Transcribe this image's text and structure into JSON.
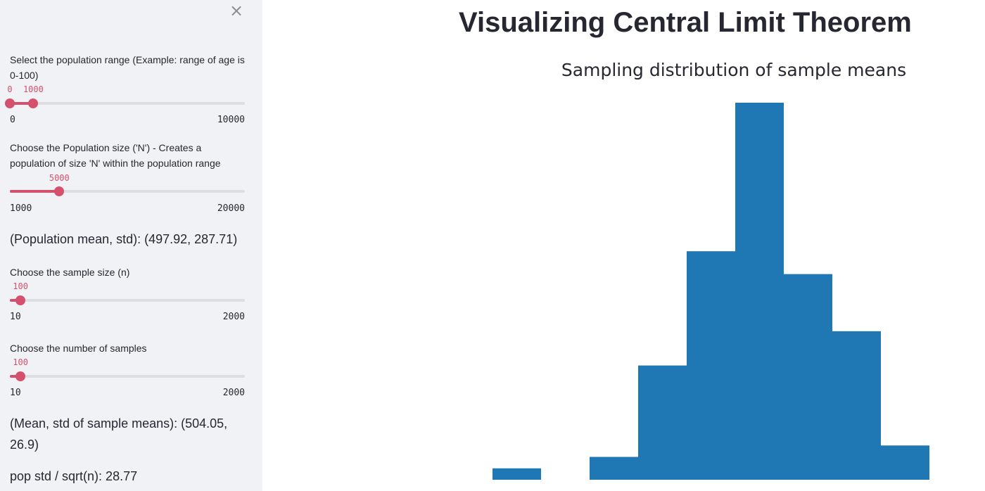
{
  "sidebar": {
    "close_label": "×",
    "range_slider": {
      "label": "Select the population range (Example: range of age is 0-100)",
      "min": 0,
      "max": 10000,
      "min_label": "0",
      "max_label": "10000",
      "value_low": 0,
      "value_high": 1000,
      "value_low_label": "0",
      "value_high_label": "1000"
    },
    "population_slider": {
      "label": "Choose the Population size ('N') - Creates a population of size 'N' within the population range",
      "min": 1000,
      "max": 20000,
      "min_label": "1000",
      "max_label": "20000",
      "value": 5000,
      "value_label": "5000"
    },
    "population_stats": "(Population mean, std): (497.92, 287.71)",
    "sample_size_slider": {
      "label": "Choose the sample size (n)",
      "min": 10,
      "max": 2000,
      "min_label": "10",
      "max_label": "2000",
      "value": 100,
      "value_label": "100"
    },
    "num_samples_slider": {
      "label": "Choose the number of samples",
      "min": 10,
      "max": 2000,
      "min_label": "10",
      "max_label": "2000",
      "value": 100,
      "value_label": "100"
    },
    "sample_stats": "(Mean, std of sample means): (504.05, 26.9)",
    "pop_std_ratio": "pop std / sqrt(n): 28.77"
  },
  "main": {
    "title": "Visualizing Central Limit Theorem"
  },
  "chart_data": {
    "type": "bar",
    "title": "Sampling distribution of sample means",
    "bar_color": "#1f77b4",
    "bins": [
      {
        "index": 0,
        "value": 1
      },
      {
        "index": 1,
        "value": 0
      },
      {
        "index": 2,
        "value": 2
      },
      {
        "index": 3,
        "value": 10
      },
      {
        "index": 4,
        "value": 20
      },
      {
        "index": 5,
        "value": 33
      },
      {
        "index": 6,
        "value": 18
      },
      {
        "index": 7,
        "value": 13
      },
      {
        "index": 8,
        "value": 3
      }
    ],
    "ylim": [
      0,
      33
    ],
    "grid": false,
    "legend": "none"
  },
  "colors": {
    "accent": "#d4506c",
    "sidebar_bg": "#f0f2f6",
    "track": "#dcdee4"
  }
}
